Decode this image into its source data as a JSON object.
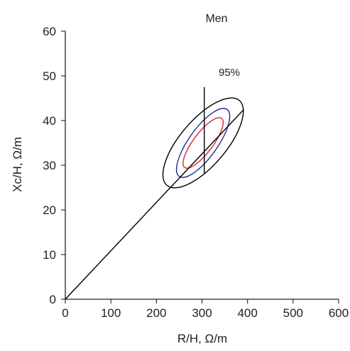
{
  "chart_data": {
    "type": "line",
    "title": "Men",
    "xlabel": "R/H, Ω/m",
    "ylabel": "Xc/H, Ω/m",
    "xlim": [
      0,
      600
    ],
    "ylim": [
      0,
      60
    ],
    "xticks": [
      "0",
      "100",
      "200",
      "300",
      "400",
      "500",
      "600"
    ],
    "yticks": [
      "0",
      "10",
      "20",
      "30",
      "40",
      "50",
      "60"
    ],
    "grid": false,
    "series": [
      {
        "kind": "line",
        "color": "#000000",
        "points": [
          [
            0,
            0
          ],
          [
            392,
            42.5
          ]
        ]
      },
      {
        "kind": "line",
        "color": "#000000",
        "points": [
          [
            305,
            28
          ],
          [
            305,
            47.5
          ]
        ]
      }
    ],
    "ellipses": [
      {
        "color": "#d62728",
        "center": [
          302.5,
          35
        ],
        "semi_major_point": [
          343,
          40.5
        ],
        "semi_minor_point": [
          287,
          36.5
        ]
      },
      {
        "color": "#2a2f8f",
        "center": [
          302.5,
          35
        ],
        "semi_major_point": [
          355,
          42.5
        ],
        "semi_minor_point": [
          283,
          37.5
        ]
      },
      {
        "color": "#000000",
        "center": [
          302.5,
          35
        ],
        "semi_major_point": [
          382,
          44.5
        ],
        "semi_minor_point": [
          271,
          39
        ]
      }
    ],
    "annotations": [
      {
        "text": "95%",
        "x": 360,
        "y": 50
      }
    ]
  }
}
